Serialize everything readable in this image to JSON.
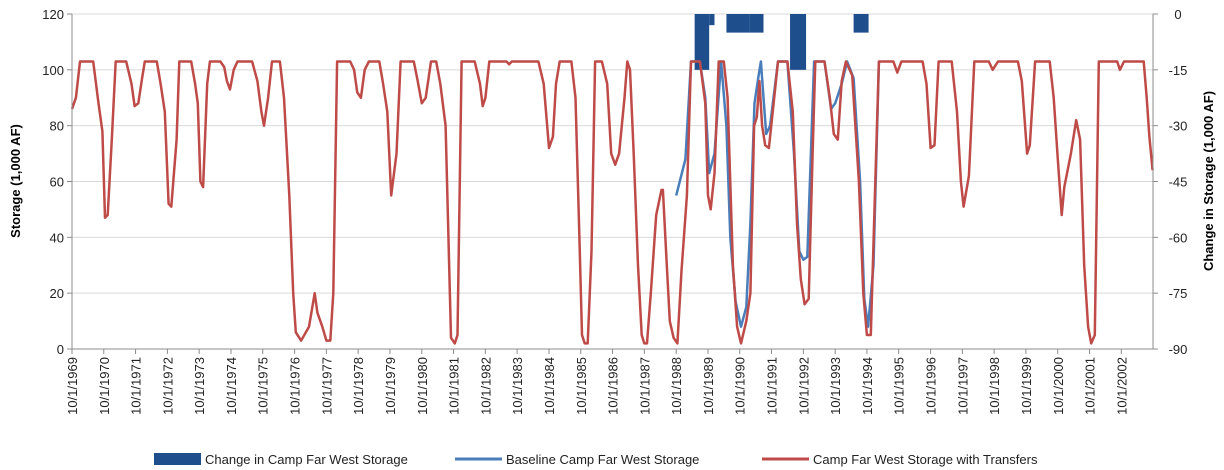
{
  "chart_data": {
    "type": "line",
    "ylabel": "Storage (1,000 AF)",
    "y2label": "Change in Storage (1,000 AF)",
    "ylim": [
      0,
      120
    ],
    "y2lim": [
      -90,
      0
    ],
    "yticks": [
      0,
      20,
      40,
      60,
      80,
      100,
      120
    ],
    "y2ticks": [
      0,
      -15,
      -30,
      -45,
      -60,
      -75,
      -90
    ],
    "xlim": [
      "1969-10-01",
      "2003-09-30"
    ],
    "xticks": [
      "10/1/1969",
      "10/1/1970",
      "10/1/1971",
      "10/1/1972",
      "10/1/1973",
      "10/1/1974",
      "10/1/1975",
      "10/1/1976",
      "10/1/1977",
      "10/1/1978",
      "10/1/1979",
      "10/1/1980",
      "10/1/1981",
      "10/1/1982",
      "10/1/1983",
      "10/1/1984",
      "10/1/1985",
      "10/1/1986",
      "10/1/1987",
      "10/1/1988",
      "10/1/1989",
      "10/1/1990",
      "10/1/1991",
      "10/1/1992",
      "10/1/1993",
      "10/1/1994",
      "10/1/1995",
      "10/1/1996",
      "10/1/1997",
      "10/1/1998",
      "10/1/1999",
      "10/1/2000",
      "10/1/2001",
      "10/1/2002"
    ],
    "grid": "horizontal",
    "legend_position": "bottom",
    "series": [
      {
        "name": "Change in Camp Far West Storage",
        "type": "bar",
        "axis": "right",
        "color": "#1F4E8C",
        "bars": [
          {
            "x0": "1989-05-01",
            "x1": "1989-10-15",
            "value": -15
          },
          {
            "x0": "1989-10-15",
            "x1": "1989-12-15",
            "value": -3
          },
          {
            "x0": "1990-05-01",
            "x1": "1991-01-20",
            "value": -5
          },
          {
            "x0": "1991-01-20",
            "x1": "1991-07-01",
            "value": -5
          },
          {
            "x0": "1992-05-01",
            "x1": "1992-11-01",
            "value": -15
          },
          {
            "x0": "1994-05-01",
            "x1": "1994-10-20",
            "value": -5
          }
        ]
      },
      {
        "name": "Baseline Camp Far West Storage",
        "type": "line",
        "axis": "left",
        "color": "#4A7EBB",
        "points": [
          [
            "1988-10-01",
            55
          ],
          [
            "1989-01-15",
            68
          ],
          [
            "1989-03-20",
            103
          ],
          [
            "1989-07-01",
            103
          ],
          [
            "1989-09-01",
            90
          ],
          [
            "1989-10-15",
            63
          ],
          [
            "1989-12-15",
            70
          ],
          [
            "1990-03-01",
            103
          ],
          [
            "1990-05-01",
            80
          ],
          [
            "1990-06-15",
            40
          ],
          [
            "1990-08-15",
            17
          ],
          [
            "1990-10-15",
            8
          ],
          [
            "1990-12-15",
            15
          ],
          [
            "1991-02-01",
            45
          ],
          [
            "1991-03-20",
            88
          ],
          [
            "1991-05-01",
            97
          ],
          [
            "1991-06-01",
            103
          ],
          [
            "1991-07-01",
            90
          ],
          [
            "1991-08-01",
            77
          ],
          [
            "1991-09-15",
            80
          ],
          [
            "1991-12-15",
            103
          ],
          [
            "1992-04-01",
            103
          ],
          [
            "1992-06-15",
            70
          ],
          [
            "1992-08-15",
            35
          ],
          [
            "1992-10-01",
            32
          ],
          [
            "1992-11-15",
            33
          ],
          [
            "1993-02-01",
            103
          ],
          [
            "1993-06-01",
            103
          ],
          [
            "1993-08-15",
            86
          ],
          [
            "1993-10-01",
            88
          ],
          [
            "1993-12-15",
            95
          ],
          [
            "1994-02-15",
            103
          ],
          [
            "1994-05-01",
            97
          ],
          [
            "1994-07-15",
            60
          ],
          [
            "1994-09-01",
            18
          ],
          [
            "1994-10-15",
            8
          ],
          [
            "1994-12-15",
            30
          ],
          [
            "1995-02-15",
            103
          ]
        ]
      },
      {
        "name": "Camp Far West Storage with Transfers",
        "type": "line",
        "axis": "left",
        "color": "#BE4B48",
        "points": [
          [
            "1969-10-01",
            86
          ],
          [
            "1969-11-15",
            90
          ],
          [
            "1970-01-01",
            103
          ],
          [
            "1970-06-01",
            103
          ],
          [
            "1970-08-01",
            88
          ],
          [
            "1970-09-15",
            78
          ],
          [
            "1970-10-15",
            47
          ],
          [
            "1970-11-15",
            48
          ],
          [
            "1971-01-01",
            75
          ],
          [
            "1971-02-15",
            103
          ],
          [
            "1971-06-15",
            103
          ],
          [
            "1971-08-15",
            95
          ],
          [
            "1971-09-20",
            87
          ],
          [
            "1971-11-01",
            88
          ],
          [
            "1971-12-15",
            97
          ],
          [
            "1972-01-15",
            103
          ],
          [
            "1972-06-01",
            103
          ],
          [
            "1972-07-15",
            95
          ],
          [
            "1972-09-01",
            85
          ],
          [
            "1972-10-15",
            52
          ],
          [
            "1972-11-15",
            51
          ],
          [
            "1973-01-15",
            75
          ],
          [
            "1973-02-15",
            103
          ],
          [
            "1973-07-01",
            103
          ],
          [
            "1973-08-15",
            95
          ],
          [
            "1973-09-15",
            88
          ],
          [
            "1973-10-15",
            60
          ],
          [
            "1973-11-15",
            58
          ],
          [
            "1974-01-01",
            95
          ],
          [
            "1974-02-01",
            103
          ],
          [
            "1974-06-01",
            103
          ],
          [
            "1974-07-15",
            101
          ],
          [
            "1974-08-15",
            96
          ],
          [
            "1974-09-20",
            93
          ],
          [
            "1974-11-01",
            100
          ],
          [
            "1974-12-15",
            103
          ],
          [
            "1975-06-01",
            103
          ],
          [
            "1975-08-01",
            96
          ],
          [
            "1975-09-15",
            85
          ],
          [
            "1975-10-15",
            80
          ],
          [
            "1975-12-01",
            90
          ],
          [
            "1976-01-15",
            103
          ],
          [
            "1976-04-15",
            103
          ],
          [
            "1976-06-01",
            90
          ],
          [
            "1976-08-01",
            55
          ],
          [
            "1976-09-15",
            20
          ],
          [
            "1976-10-15",
            6
          ],
          [
            "1976-12-15",
            3
          ],
          [
            "1977-03-15",
            8
          ],
          [
            "1977-05-20",
            20
          ],
          [
            "1977-06-20",
            13
          ],
          [
            "1977-08-15",
            8
          ],
          [
            "1977-10-01",
            3
          ],
          [
            "1977-11-15",
            3
          ],
          [
            "1977-12-20",
            20
          ],
          [
            "1978-02-01",
            103
          ],
          [
            "1978-07-01",
            103
          ],
          [
            "1978-08-15",
            100
          ],
          [
            "1978-09-20",
            92
          ],
          [
            "1978-11-01",
            90
          ],
          [
            "1978-12-15",
            100
          ],
          [
            "1979-02-01",
            103
          ],
          [
            "1979-06-01",
            103
          ],
          [
            "1979-07-15",
            95
          ],
          [
            "1979-09-01",
            85
          ],
          [
            "1979-10-15",
            55
          ],
          [
            "1979-12-15",
            70
          ],
          [
            "1980-02-01",
            103
          ],
          [
            "1980-07-01",
            103
          ],
          [
            "1980-08-15",
            96
          ],
          [
            "1980-10-01",
            88
          ],
          [
            "1980-11-15",
            90
          ],
          [
            "1981-01-15",
            103
          ],
          [
            "1981-03-15",
            103
          ],
          [
            "1981-05-01",
            95
          ],
          [
            "1981-07-01",
            80
          ],
          [
            "1981-09-01",
            4
          ],
          [
            "1981-10-15",
            2
          ],
          [
            "1981-11-15",
            5
          ],
          [
            "1982-01-01",
            103
          ],
          [
            "1982-06-01",
            103
          ],
          [
            "1982-08-01",
            95
          ],
          [
            "1982-09-01",
            87
          ],
          [
            "1982-10-01",
            90
          ],
          [
            "1982-11-15",
            103
          ],
          [
            "1983-06-01",
            103
          ],
          [
            "1983-07-01",
            102
          ],
          [
            "1983-08-01",
            103
          ],
          [
            "1984-06-01",
            103
          ],
          [
            "1984-08-01",
            95
          ],
          [
            "1984-10-01",
            72
          ],
          [
            "1984-11-15",
            76
          ],
          [
            "1984-12-20",
            95
          ],
          [
            "1985-02-01",
            103
          ],
          [
            "1985-06-15",
            103
          ],
          [
            "1985-08-01",
            90
          ],
          [
            "1985-09-15",
            40
          ],
          [
            "1985-10-15",
            5
          ],
          [
            "1985-11-15",
            2
          ],
          [
            "1985-12-20",
            2
          ],
          [
            "1986-02-01",
            35
          ],
          [
            "1986-03-01",
            80
          ],
          [
            "1986-03-15",
            103
          ],
          [
            "1986-06-01",
            103
          ],
          [
            "1986-08-01",
            95
          ],
          [
            "1986-09-15",
            70
          ],
          [
            "1986-11-01",
            66
          ],
          [
            "1986-12-15",
            70
          ],
          [
            "1987-02-15",
            90
          ],
          [
            "1987-03-20",
            103
          ],
          [
            "1987-04-20",
            100
          ],
          [
            "1987-06-01",
            70
          ],
          [
            "1987-07-20",
            30
          ],
          [
            "1987-09-01",
            5
          ],
          [
            "1987-10-01",
            2
          ],
          [
            "1987-11-01",
            2
          ],
          [
            "1987-12-15",
            20
          ],
          [
            "1988-02-15",
            48
          ],
          [
            "1988-04-15",
            57
          ],
          [
            "1988-05-01",
            57
          ],
          [
            "1988-06-15",
            30
          ],
          [
            "1988-07-20",
            10
          ],
          [
            "1988-09-01",
            4
          ],
          [
            "1988-10-15",
            2
          ],
          [
            "1988-12-01",
            28
          ],
          [
            "1989-02-01",
            55
          ],
          [
            "1989-03-20",
            103
          ],
          [
            "1989-07-01",
            103
          ],
          [
            "1989-09-01",
            88
          ],
          [
            "1989-10-01",
            55
          ],
          [
            "1989-11-01",
            50
          ],
          [
            "1989-12-15",
            63
          ],
          [
            "1990-02-01",
            103
          ],
          [
            "1990-04-01",
            103
          ],
          [
            "1990-05-15",
            90
          ],
          [
            "1990-07-15",
            30
          ],
          [
            "1990-09-01",
            8
          ],
          [
            "1990-10-15",
            2
          ],
          [
            "1990-12-15",
            10
          ],
          [
            "1991-02-01",
            20
          ],
          [
            "1991-03-15",
            80
          ],
          [
            "1991-04-15",
            83
          ],
          [
            "1991-05-15",
            96
          ],
          [
            "1991-06-15",
            80
          ],
          [
            "1991-07-20",
            73
          ],
          [
            "1991-09-01",
            72
          ],
          [
            "1991-11-01",
            90
          ],
          [
            "1991-12-15",
            103
          ],
          [
            "1992-04-01",
            103
          ],
          [
            "1992-06-01",
            85
          ],
          [
            "1992-07-20",
            45
          ],
          [
            "1992-09-01",
            25
          ],
          [
            "1992-10-15",
            16
          ],
          [
            "1992-12-01",
            18
          ],
          [
            "1993-01-15",
            70
          ],
          [
            "1993-02-15",
            103
          ],
          [
            "1993-06-01",
            103
          ],
          [
            "1993-08-01",
            90
          ],
          [
            "1993-09-15",
            77
          ],
          [
            "1993-11-01",
            75
          ],
          [
            "1993-12-15",
            96
          ],
          [
            "1994-02-01",
            103
          ],
          [
            "1994-04-15",
            98
          ],
          [
            "1994-07-01",
            60
          ],
          [
            "1994-08-20",
            20
          ],
          [
            "1994-10-01",
            5
          ],
          [
            "1994-11-15",
            5
          ],
          [
            "1995-01-01",
            55
          ],
          [
            "1995-02-15",
            103
          ],
          [
            "1995-08-01",
            103
          ],
          [
            "1995-09-15",
            99
          ],
          [
            "1995-11-01",
            103
          ],
          [
            "1996-07-01",
            103
          ],
          [
            "1996-08-15",
            95
          ],
          [
            "1996-10-01",
            72
          ],
          [
            "1996-11-15",
            73
          ],
          [
            "1997-01-01",
            103
          ],
          [
            "1997-06-01",
            103
          ],
          [
            "1997-08-01",
            85
          ],
          [
            "1997-09-15",
            60
          ],
          [
            "1997-10-15",
            51
          ],
          [
            "1997-12-15",
            62
          ],
          [
            "1998-02-15",
            103
          ],
          [
            "1998-08-01",
            103
          ],
          [
            "1998-09-15",
            100
          ],
          [
            "1998-11-15",
            103
          ],
          [
            "1999-07-01",
            103
          ],
          [
            "1999-08-15",
            96
          ],
          [
            "1999-10-15",
            70
          ],
          [
            "1999-11-15",
            73
          ],
          [
            "2000-01-15",
            103
          ],
          [
            "2000-07-01",
            103
          ],
          [
            "2000-08-15",
            90
          ],
          [
            "2000-10-01",
            68
          ],
          [
            "2000-11-15",
            48
          ],
          [
            "2000-12-15",
            58
          ],
          [
            "2001-03-01",
            70
          ],
          [
            "2001-05-01",
            82
          ],
          [
            "2001-06-15",
            75
          ],
          [
            "2001-08-01",
            30
          ],
          [
            "2001-09-15",
            8
          ],
          [
            "2001-10-20",
            2
          ],
          [
            "2001-12-01",
            5
          ],
          [
            "2002-01-15",
            103
          ],
          [
            "2002-08-15",
            103
          ],
          [
            "2002-09-15",
            100
          ],
          [
            "2002-11-01",
            103
          ],
          [
            "2003-06-15",
            103
          ],
          [
            "2003-07-20",
            90
          ],
          [
            "2003-08-20",
            76
          ],
          [
            "2003-09-25",
            64
          ]
        ]
      }
    ]
  }
}
